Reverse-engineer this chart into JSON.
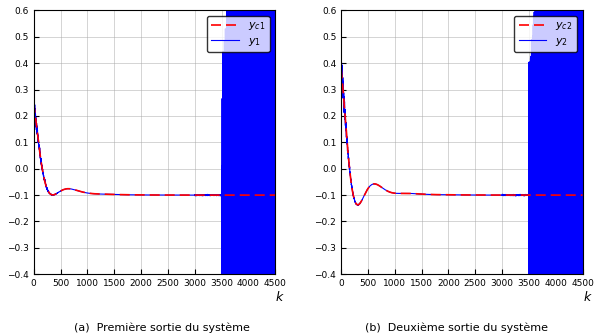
{
  "xlim": [
    0,
    4500
  ],
  "ylim1": [
    -0.4,
    0.6
  ],
  "ylim2": [
    -0.4,
    0.6
  ],
  "xticks": [
    0,
    500,
    1000,
    1500,
    2000,
    2500,
    3000,
    3500,
    4000,
    4500
  ],
  "yticks1": [
    -0.4,
    -0.3,
    -0.2,
    -0.1,
    0.0,
    0.1,
    0.2,
    0.3,
    0.4,
    0.5,
    0.6
  ],
  "yticks2": [
    -0.4,
    -0.3,
    -0.2,
    -0.1,
    0.0,
    0.1,
    0.2,
    0.3,
    0.4,
    0.5,
    0.6
  ],
  "desired_color": "#FF0000",
  "actual_color": "#0000FF",
  "background": "#FFFFFF",
  "grid_color": "#AAAAAA",
  "caption_a": "(a)  Première sortie du système",
  "caption_b": "(b)  Deuxième sortie du système",
  "legend1_desired": "$y_{c1}$",
  "legend1_actual": "$y_1$",
  "legend2_desired": "$y_{c2}$",
  "legend2_actual": "$y_2$",
  "xlabel": "$k$"
}
